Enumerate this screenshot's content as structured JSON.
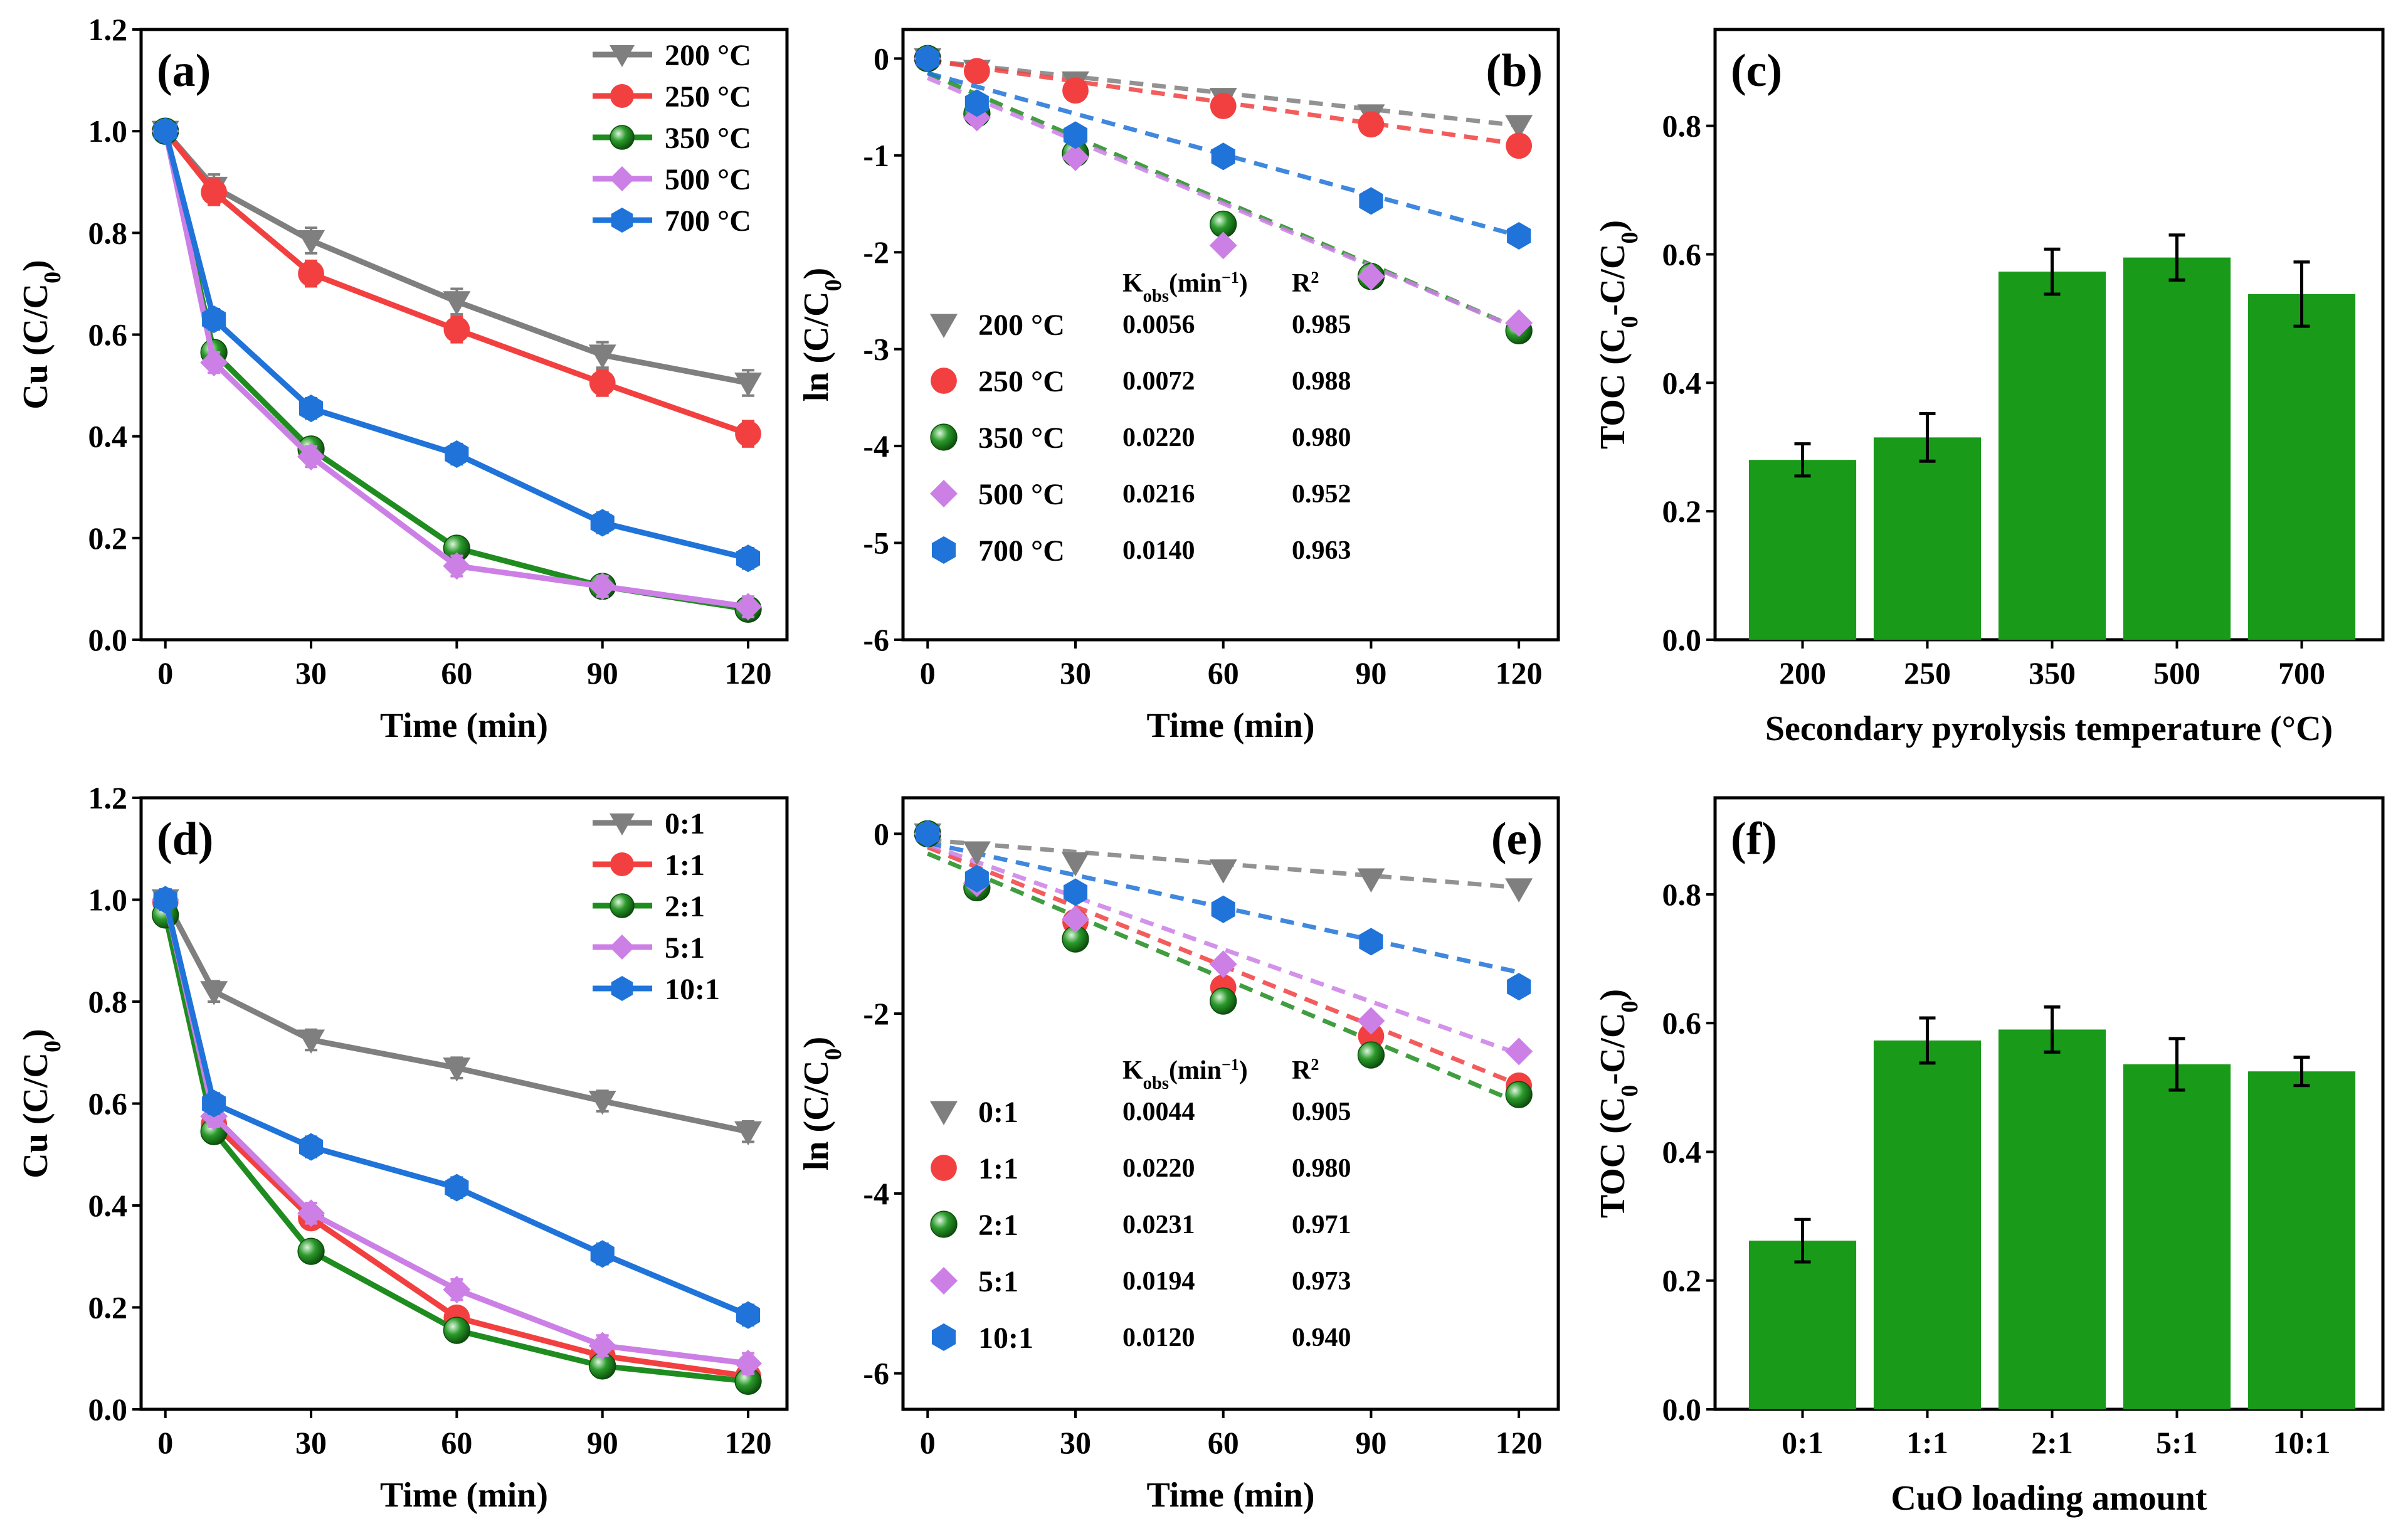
{
  "figure_labels": {
    "a": "(a)",
    "b": "(b)",
    "c": "(c)",
    "d": "(d)",
    "e": "(e)",
    "f": "(f)"
  },
  "colors": {
    "gray": "#7f7f7f",
    "red": "#f24040",
    "green": "#1f8c1f",
    "violet": "#cc80e6",
    "blue": "#1f73d9",
    "bar": "#199a19"
  },
  "chart_data": [
    {
      "id": "a",
      "type": "line",
      "title": "(a)",
      "xlabel": "Time (min)",
      "ylabel": "Cu (C/C0)",
      "xlim": [
        -5,
        128
      ],
      "ylim": [
        0,
        1.2
      ],
      "xticks": [
        0,
        30,
        60,
        90,
        120
      ],
      "yticks": [
        0.0,
        0.2,
        0.4,
        0.6,
        0.8,
        1.0,
        1.2
      ],
      "ytick_labels": [
        "0.0",
        "0.2",
        "0.4",
        "0.6",
        "0.8",
        "1.0",
        "1.2"
      ],
      "legend_position": "top-right",
      "x": [
        0,
        10,
        30,
        60,
        90,
        120
      ],
      "series": [
        {
          "name": "200 °C",
          "marker": "triangle-down",
          "color": "#7f7f7f",
          "values": [
            1.0,
            0.89,
            0.785,
            0.665,
            0.56,
            0.505
          ],
          "errors": [
            0.02,
            0.025,
            0.025,
            0.025,
            0.025,
            0.025
          ]
        },
        {
          "name": "250 °C",
          "marker": "circle",
          "color": "#f24040",
          "values": [
            1.0,
            0.88,
            0.72,
            0.61,
            0.505,
            0.405
          ],
          "errors": [
            0.02,
            0.025,
            0.025,
            0.025,
            0.025,
            0.025
          ]
        },
        {
          "name": "350 °C",
          "marker": "sphere",
          "color": "#1f8c1f",
          "values": [
            1.0,
            0.565,
            0.375,
            0.18,
            0.105,
            0.06
          ],
          "errors": [
            0.02,
            0.02,
            0.02,
            0.02,
            0.02,
            0.02
          ]
        },
        {
          "name": "500 °C",
          "marker": "diamond",
          "color": "#cc80e6",
          "values": [
            1.0,
            0.545,
            0.36,
            0.145,
            0.105,
            0.065
          ],
          "errors": [
            0.02,
            0.02,
            0.02,
            0.02,
            0.02,
            0.02
          ]
        },
        {
          "name": "700 °C",
          "marker": "hexagon",
          "color": "#1f73d9",
          "values": [
            1.0,
            0.63,
            0.455,
            0.365,
            0.23,
            0.16
          ],
          "errors": [
            0.02,
            0.02,
            0.02,
            0.02,
            0.02,
            0.02
          ]
        }
      ]
    },
    {
      "id": "b",
      "type": "scatter",
      "title": "(b)",
      "xlabel": "Time (min)",
      "ylabel": "ln (C/C0)",
      "xlim": [
        -5,
        128
      ],
      "ylim": [
        -6,
        0.3
      ],
      "xticks": [
        0,
        30,
        60,
        90,
        120
      ],
      "yticks": [
        0,
        -1,
        -2,
        -3,
        -4,
        -5,
        -6
      ],
      "ytick_labels": [
        "0",
        "-1",
        "-2",
        "-3",
        "-4",
        "-5",
        "-6"
      ],
      "table_header": {
        "k": "Kobs(min−1)",
        "r2": "R2"
      },
      "x": [
        0,
        10,
        30,
        60,
        90,
        120
      ],
      "series": [
        {
          "name": "200 °C",
          "marker": "triangle-down",
          "color": "#7f7f7f",
          "values": [
            0,
            -0.12,
            -0.24,
            -0.41,
            -0.58,
            -0.69
          ],
          "k": "0.0056",
          "r2": "0.985",
          "fit_intercept": -0.02
        },
        {
          "name": "250 °C",
          "marker": "circle",
          "color": "#f24040",
          "values": [
            0,
            -0.13,
            -0.33,
            -0.49,
            -0.68,
            -0.9
          ],
          "k": "0.0072",
          "r2": "0.988",
          "fit_intercept": -0.02
        },
        {
          "name": "350 °C",
          "marker": "sphere",
          "color": "#1f8c1f",
          "values": [
            0,
            -0.57,
            -0.98,
            -1.71,
            -2.25,
            -2.81
          ],
          "k": "0.0220",
          "r2": "0.980",
          "fit_intercept": -0.15
        },
        {
          "name": "500 °C",
          "marker": "diamond",
          "color": "#cc80e6",
          "values": [
            0,
            -0.61,
            -1.02,
            -1.93,
            -2.25,
            -2.73
          ],
          "k": "0.0216",
          "r2": "0.952",
          "fit_intercept": -0.2
        },
        {
          "name": "700 °C",
          "marker": "hexagon",
          "color": "#1f73d9",
          "values": [
            0,
            -0.46,
            -0.79,
            -1.01,
            -1.47,
            -1.83
          ],
          "k": "0.0140",
          "r2": "0.963",
          "fit_intercept": -0.15
        }
      ]
    },
    {
      "id": "c",
      "type": "bar",
      "title": "(c)",
      "xlabel": "Secondary pyrolysis temperature (°C)",
      "ylabel": "TOC (C0-C/C0)",
      "ylim": [
        0,
        0.95
      ],
      "yticks": [
        0.0,
        0.2,
        0.4,
        0.6,
        0.8
      ],
      "ytick_labels": [
        "0.0",
        "0.2",
        "0.4",
        "0.6",
        "0.8"
      ],
      "categories": [
        "200",
        "250",
        "350",
        "500",
        "700"
      ],
      "values": [
        0.28,
        0.315,
        0.573,
        0.595,
        0.538
      ],
      "errors": [
        0.025,
        0.037,
        0.035,
        0.035,
        0.05
      ]
    },
    {
      "id": "d",
      "type": "line",
      "title": "(d)",
      "xlabel": "Time (min)",
      "ylabel": "Cu (C/C0)",
      "xlim": [
        -5,
        128
      ],
      "ylim": [
        0,
        1.2
      ],
      "xticks": [
        0,
        30,
        60,
        90,
        120
      ],
      "yticks": [
        0.0,
        0.2,
        0.4,
        0.6,
        0.8,
        1.0,
        1.2
      ],
      "ytick_labels": [
        "0.0",
        "0.2",
        "0.4",
        "0.6",
        "0.8",
        "1.0",
        "1.2"
      ],
      "legend_position": "top-right",
      "x": [
        0,
        10,
        30,
        60,
        90,
        120
      ],
      "series": [
        {
          "name": "0:1",
          "marker": "triangle-down",
          "color": "#7f7f7f",
          "values": [
            1.0,
            0.82,
            0.725,
            0.67,
            0.605,
            0.545
          ],
          "errors": [
            0.02,
            0.02,
            0.02,
            0.02,
            0.02,
            0.02
          ]
        },
        {
          "name": "1:1",
          "marker": "circle",
          "color": "#f24040",
          "values": [
            0.995,
            0.56,
            0.375,
            0.18,
            0.105,
            0.065
          ],
          "errors": [
            0.02,
            0.02,
            0.02,
            0.02,
            0.02,
            0.02
          ]
        },
        {
          "name": "2:1",
          "marker": "sphere",
          "color": "#1f8c1f",
          "values": [
            0.97,
            0.545,
            0.31,
            0.155,
            0.085,
            0.055
          ],
          "errors": [
            0.02,
            0.02,
            0.02,
            0.02,
            0.02,
            0.02
          ]
        },
        {
          "name": "5:1",
          "marker": "diamond",
          "color": "#cc80e6",
          "values": [
            1.0,
            0.575,
            0.385,
            0.235,
            0.125,
            0.09
          ],
          "errors": [
            0.02,
            0.02,
            0.02,
            0.02,
            0.02,
            0.02
          ]
        },
        {
          "name": "10:1",
          "marker": "hexagon",
          "color": "#1f73d9",
          "values": [
            1.0,
            0.6,
            0.515,
            0.435,
            0.305,
            0.185
          ],
          "errors": [
            0.02,
            0.02,
            0.02,
            0.02,
            0.02,
            0.02
          ]
        }
      ]
    },
    {
      "id": "e",
      "type": "scatter",
      "title": "(e)",
      "xlabel": "Time (min)",
      "ylabel": "ln (C/C0)",
      "xlim": [
        -5,
        128
      ],
      "ylim": [
        -6.4,
        0.4
      ],
      "xticks": [
        0,
        30,
        60,
        90,
        120
      ],
      "yticks": [
        0,
        -2,
        -4,
        -6
      ],
      "ytick_labels": [
        "0",
        "-2",
        "-4",
        "-6"
      ],
      "table_header": {
        "k": "Kobs(min−1)",
        "r2": "R2"
      },
      "x": [
        0,
        10,
        30,
        60,
        90,
        120
      ],
      "series": [
        {
          "name": "0:1",
          "marker": "triangle-down",
          "color": "#7f7f7f",
          "values": [
            0,
            -0.2,
            -0.32,
            -0.4,
            -0.5,
            -0.61
          ],
          "k": "0.0044",
          "r2": "0.905",
          "fit_intercept": -0.07
        },
        {
          "name": "1:1",
          "marker": "circle",
          "color": "#f24040",
          "values": [
            0,
            -0.58,
            -0.98,
            -1.71,
            -2.25,
            -2.8
          ],
          "k": "0.0220",
          "r2": "0.980",
          "fit_intercept": -0.15
        },
        {
          "name": "2:1",
          "marker": "sphere",
          "color": "#1f8c1f",
          "values": [
            0,
            -0.6,
            -1.17,
            -1.86,
            -2.46,
            -2.9
          ],
          "k": "0.0231",
          "r2": "0.971",
          "fit_intercept": -0.22
        },
        {
          "name": "5:1",
          "marker": "diamond",
          "color": "#cc80e6",
          "values": [
            0,
            -0.55,
            -0.95,
            -1.45,
            -2.08,
            -2.42
          ],
          "k": "0.0194",
          "r2": "0.973",
          "fit_intercept": -0.12
        },
        {
          "name": "10:1",
          "marker": "hexagon",
          "color": "#1f73d9",
          "values": [
            0,
            -0.5,
            -0.65,
            -0.84,
            -1.2,
            -1.7
          ],
          "k": "0.0120",
          "r2": "0.940",
          "fit_intercept": -0.1
        }
      ]
    },
    {
      "id": "f",
      "type": "bar",
      "title": "(f)",
      "xlabel": "CuO loading amount",
      "ylabel": "TOC (C0-C/C0)",
      "ylim": [
        0,
        0.95
      ],
      "yticks": [
        0.0,
        0.2,
        0.4,
        0.6,
        0.8
      ],
      "ytick_labels": [
        "0.0",
        "0.2",
        "0.4",
        "0.6",
        "0.8"
      ],
      "categories": [
        "0:1",
        "1:1",
        "2:1",
        "5:1",
        "10:1"
      ],
      "values": [
        0.262,
        0.573,
        0.59,
        0.536,
        0.525
      ],
      "errors": [
        0.033,
        0.035,
        0.035,
        0.04,
        0.022
      ]
    }
  ]
}
